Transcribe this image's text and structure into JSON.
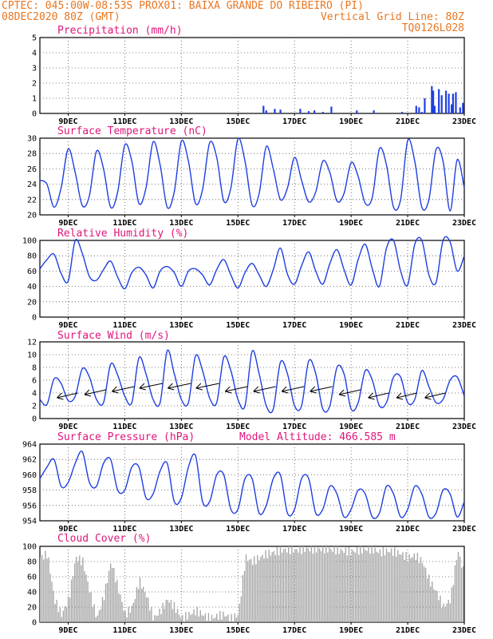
{
  "header": {
    "line1_left": "CPTEC:  045:00W-08:53S  PROX01: BAIXA GRANDE DO RIBEIRO (PI)",
    "line2_left": "08DEC2020 80Z (GMT)",
    "line2_right": "Vertical Grid Line: 80Z",
    "line3_right": "TQ0126L028"
  },
  "colors": {
    "line": "#1f3fe0",
    "wind_arrow": "#000000",
    "cloud": "#a8a8a8",
    "title": "#e0157a",
    "header": "#e87722"
  },
  "x_axis": {
    "tick_labels": [
      "9DEC",
      "11DEC",
      "13DEC",
      "15DEC",
      "17DEC",
      "19DEC",
      "21DEC",
      "23DEC"
    ],
    "tick_days": [
      9,
      11,
      13,
      15,
      17,
      19,
      21,
      23
    ],
    "range_days": [
      8,
      23
    ]
  },
  "chart_data": [
    {
      "type": "bar",
      "id": "precip",
      "title": "Precipitation (mm/h)",
      "ylim": [
        0,
        5
      ],
      "yticks": [
        0,
        1,
        2,
        3,
        4,
        5
      ],
      "x": [
        15.9,
        16.0,
        16.3,
        16.5,
        17.2,
        17.5,
        17.7,
        18.0,
        18.3,
        19.2,
        19.8,
        20.8,
        21.3,
        21.4,
        21.5,
        21.6,
        21.85,
        21.9,
        21.95,
        22.1,
        22.2,
        22.35,
        22.45,
        22.55,
        22.6,
        22.7,
        22.85,
        22.95
      ],
      "values": [
        0.5,
        0.2,
        0.3,
        0.25,
        0.3,
        0.15,
        0.2,
        0.1,
        0.45,
        0.2,
        0.2,
        0.1,
        0.5,
        0.4,
        0.1,
        1.0,
        1.8,
        1.5,
        0.5,
        1.6,
        1.2,
        1.5,
        1.3,
        0.6,
        1.3,
        1.4,
        0.4,
        0.7
      ]
    },
    {
      "type": "line",
      "id": "temp",
      "title": "Surface Temperature (nC)",
      "ylim": [
        20,
        30
      ],
      "yticks": [
        20,
        22,
        24,
        26,
        28,
        30
      ],
      "x": [
        8.0,
        8.25,
        8.5,
        8.75,
        9.0,
        9.25,
        9.5,
        9.75,
        10.0,
        10.25,
        10.5,
        10.75,
        11.0,
        11.25,
        11.5,
        11.75,
        12.0,
        12.25,
        12.5,
        12.75,
        13.0,
        13.25,
        13.5,
        13.75,
        14.0,
        14.25,
        14.5,
        14.75,
        15.0,
        15.25,
        15.5,
        15.75,
        16.0,
        16.25,
        16.5,
        16.75,
        17.0,
        17.25,
        17.5,
        17.75,
        18.0,
        18.25,
        18.5,
        18.75,
        19.0,
        19.25,
        19.5,
        19.75,
        20.0,
        20.25,
        20.5,
        20.75,
        21.0,
        21.25,
        21.5,
        21.75,
        22.0,
        22.25,
        22.5,
        22.75,
        23.0
      ],
      "values": [
        24.5,
        24.0,
        21.0,
        23.5,
        28.6,
        25.5,
        21.2,
        22.5,
        28.3,
        26.0,
        21.0,
        23.0,
        29.1,
        27.0,
        21.5,
        23.5,
        29.5,
        26.5,
        21.0,
        23.0,
        29.6,
        27.0,
        21.5,
        23.3,
        29.4,
        27.5,
        21.8,
        23.5,
        29.9,
        27.0,
        21.3,
        22.8,
        28.9,
        26.0,
        22.0,
        23.5,
        27.5,
        24.5,
        21.7,
        23.0,
        27.0,
        25.5,
        21.8,
        22.8,
        26.8,
        25.0,
        21.5,
        22.3,
        28.6,
        26.5,
        21.0,
        22.0,
        29.7,
        27.0,
        21.0,
        22.0,
        28.5,
        27.0,
        20.5,
        27.2,
        23.5
      ]
    },
    {
      "type": "line",
      "id": "rh",
      "title": "Relative Humidity (%)",
      "ylim": [
        0,
        100
      ],
      "yticks": [
        0,
        20,
        40,
        60,
        80,
        100
      ],
      "x": [
        8.0,
        8.25,
        8.5,
        8.75,
        9.0,
        9.25,
        9.5,
        9.75,
        10.0,
        10.25,
        10.5,
        10.75,
        11.0,
        11.25,
        11.5,
        11.75,
        12.0,
        12.25,
        12.5,
        12.75,
        13.0,
        13.25,
        13.5,
        13.75,
        14.0,
        14.25,
        14.5,
        14.75,
        15.0,
        15.25,
        15.5,
        15.75,
        16.0,
        16.25,
        16.5,
        16.75,
        17.0,
        17.25,
        17.5,
        17.75,
        18.0,
        18.25,
        18.5,
        18.75,
        19.0,
        19.25,
        19.5,
        19.75,
        20.0,
        20.25,
        20.5,
        20.75,
        21.0,
        21.25,
        21.5,
        21.75,
        22.0,
        22.25,
        22.5,
        22.75,
        23.0
      ],
      "values": [
        63,
        75,
        82,
        57,
        47,
        100,
        83,
        53,
        48,
        62,
        73,
        52,
        37,
        58,
        65,
        55,
        38,
        60,
        66,
        58,
        40,
        60,
        63,
        55,
        42,
        62,
        75,
        55,
        38,
        58,
        70,
        55,
        40,
        62,
        90,
        56,
        43,
        67,
        85,
        60,
        43,
        70,
        88,
        62,
        42,
        75,
        95,
        63,
        40,
        90,
        100,
        60,
        42,
        95,
        100,
        55,
        45,
        100,
        98,
        60,
        80
      ]
    },
    {
      "type": "line",
      "id": "wind",
      "title": "Surface Wind (m/s)",
      "ylim": [
        0,
        12
      ],
      "yticks": [
        0,
        2,
        4,
        6,
        8,
        10,
        12
      ],
      "x": [
        8.0,
        8.25,
        8.5,
        8.75,
        9.0,
        9.25,
        9.5,
        9.75,
        10.0,
        10.25,
        10.5,
        10.75,
        11.0,
        11.25,
        11.5,
        11.75,
        12.0,
        12.25,
        12.5,
        12.75,
        13.0,
        13.25,
        13.5,
        13.75,
        14.0,
        14.25,
        14.5,
        14.75,
        15.0,
        15.25,
        15.5,
        15.75,
        16.0,
        16.25,
        16.5,
        16.75,
        17.0,
        17.25,
        17.5,
        17.75,
        18.0,
        18.25,
        18.5,
        18.75,
        19.0,
        19.25,
        19.5,
        19.75,
        20.0,
        20.25,
        20.5,
        20.75,
        21.0,
        21.25,
        21.5,
        21.75,
        22.0,
        22.25,
        22.5,
        22.75,
        23.0
      ],
      "values": [
        3.0,
        2.2,
        6.2,
        5.5,
        2.8,
        3.5,
        7.8,
        6.5,
        3.0,
        2.5,
        8.5,
        6.8,
        3.5,
        2.5,
        9.5,
        7.0,
        3.0,
        2.5,
        10.6,
        7.0,
        3.0,
        2.5,
        9.8,
        7.5,
        3.2,
        2.5,
        9.6,
        7.5,
        3.0,
        2.0,
        10.5,
        7.0,
        2.0,
        1.5,
        8.8,
        7.0,
        2.0,
        2.0,
        9.0,
        7.0,
        1.5,
        2.0,
        8.0,
        7.0,
        1.5,
        2.5,
        7.5,
        6.0,
        2.0,
        2.5,
        6.5,
        6.5,
        2.5,
        3.0,
        7.5,
        5.0,
        2.5,
        3.0,
        6.0,
        6.5,
        3.5
      ],
      "arrows_x": [
        9.0,
        10.0,
        11.0,
        12.0,
        13.0,
        14.0,
        15.0,
        16.0,
        17.0,
        18.0,
        19.0,
        20.0,
        21.0,
        22.0
      ],
      "arrows_speed": [
        4,
        4.5,
        5,
        5.5,
        5.5,
        5.5,
        5,
        5,
        5,
        5,
        4.5,
        4,
        4,
        4
      ]
    },
    {
      "type": "line",
      "id": "press",
      "title": "Surface Pressure (hPa)",
      "annotation": "Model Altitude: 466.585 m",
      "ylim": [
        954,
        964
      ],
      "yticks": [
        954,
        956,
        958,
        960,
        962,
        964
      ],
      "x": [
        8.0,
        8.25,
        8.5,
        8.75,
        9.0,
        9.25,
        9.5,
        9.75,
        10.0,
        10.25,
        10.5,
        10.75,
        11.0,
        11.25,
        11.5,
        11.75,
        12.0,
        12.25,
        12.5,
        12.75,
        13.0,
        13.25,
        13.5,
        13.75,
        14.0,
        14.25,
        14.5,
        14.75,
        15.0,
        15.25,
        15.5,
        15.75,
        16.0,
        16.25,
        16.5,
        16.75,
        17.0,
        17.25,
        17.5,
        17.75,
        18.0,
        18.25,
        18.5,
        18.75,
        19.0,
        19.25,
        19.5,
        19.75,
        20.0,
        20.25,
        20.5,
        20.75,
        21.0,
        21.25,
        21.5,
        21.75,
        22.0,
        22.25,
        22.5,
        22.75,
        23.0
      ],
      "values": [
        959.5,
        961.0,
        962.0,
        958.5,
        959.0,
        961.5,
        963.0,
        959.0,
        958.5,
        961.5,
        962.0,
        958.0,
        958.0,
        961.0,
        961.0,
        957.0,
        957.5,
        960.5,
        961.5,
        956.5,
        957.0,
        961.0,
        962.5,
        956.5,
        956.5,
        960.0,
        960.0,
        955.5,
        955.5,
        959.5,
        959.5,
        955.0,
        956.0,
        959.5,
        960.0,
        955.0,
        955.5,
        959.5,
        959.5,
        955.0,
        955.5,
        958.5,
        957.5,
        954.5,
        955.5,
        958.0,
        957.5,
        954.5,
        955.0,
        958.5,
        957.5,
        954.5,
        955.5,
        958.5,
        957.5,
        954.5,
        955.0,
        958.0,
        957.5,
        954.5,
        956.5
      ]
    },
    {
      "type": "area",
      "id": "cloud",
      "title": "Cloud Cover (%)",
      "ylim": [
        0,
        100
      ],
      "yticks": [
        0,
        20,
        40,
        60,
        80,
        100
      ],
      "x": [
        8.0,
        8.25,
        8.5,
        8.75,
        9.0,
        9.25,
        9.5,
        9.75,
        10.0,
        10.25,
        10.5,
        10.75,
        11.0,
        11.25,
        11.5,
        11.75,
        12.0,
        12.25,
        12.5,
        12.75,
        13.0,
        13.25,
        13.5,
        13.75,
        14.0,
        14.25,
        14.5,
        14.75,
        15.0,
        15.25,
        15.5,
        15.75,
        16.0,
        16.25,
        16.5,
        16.75,
        17.0,
        17.25,
        17.5,
        17.75,
        18.0,
        18.25,
        18.5,
        18.75,
        19.0,
        19.25,
        19.5,
        19.75,
        20.0,
        20.25,
        20.5,
        20.75,
        21.0,
        21.25,
        21.5,
        21.75,
        22.0,
        22.25,
        22.5,
        22.75,
        23.0
      ],
      "values": [
        85,
        90,
        30,
        10,
        30,
        85,
        80,
        40,
        5,
        35,
        80,
        45,
        10,
        20,
        55,
        35,
        5,
        15,
        30,
        20,
        5,
        10,
        15,
        10,
        5,
        8,
        10,
        5,
        10,
        85,
        80,
        85,
        90,
        92,
        95,
        96,
        95,
        96,
        97,
        96,
        97,
        96,
        95,
        94,
        93,
        95,
        96,
        96,
        92,
        94,
        93,
        90,
        85,
        88,
        80,
        55,
        40,
        20,
        30,
        95,
        60
      ]
    }
  ]
}
